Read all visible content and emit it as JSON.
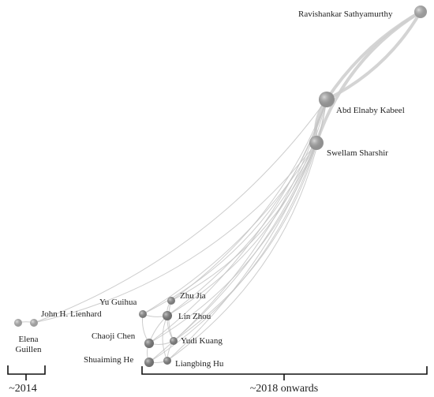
{
  "nodes": [
    {
      "id": "ravi",
      "label": "Ravishankar Sathyamurthy",
      "shade": "#b4b4b4"
    },
    {
      "id": "kabeel",
      "label": "Abd Elnaby Kabeel",
      "shade": "#a8a8a8"
    },
    {
      "id": "sharshir",
      "label": "Swellam Sharshir",
      "shade": "#a8a8a8"
    },
    {
      "id": "lienhard",
      "label": "John H. Lienhard",
      "shade": "#b8b8b8"
    },
    {
      "id": "elena",
      "label_lines": [
        "Elena",
        "Guillen"
      ],
      "shade": "#b8b8b8"
    },
    {
      "id": "yuguihua",
      "label": "Yu Guihua",
      "shade": "#8d8d8d"
    },
    {
      "id": "zhujia",
      "label": "Zhu Jia",
      "shade": "#8d8d8d"
    },
    {
      "id": "linzhou",
      "label": "Lin Zhou",
      "shade": "#7f7f7f"
    },
    {
      "id": "chaoji",
      "label": "Chaoji Chen",
      "shade": "#7f7f7f"
    },
    {
      "id": "yudi",
      "label": "Yudi Kuang",
      "shade": "#858585"
    },
    {
      "id": "shuaiming",
      "label": "Shuaiming He",
      "shade": "#7f7f7f"
    },
    {
      "id": "liangbing",
      "label": "Liangbing Hu",
      "shade": "#858585"
    }
  ],
  "edges": [
    [
      "ravi",
      "kabeel"
    ],
    [
      "ravi",
      "kabeel"
    ],
    [
      "ravi",
      "sharshir"
    ],
    [
      "kabeel",
      "sharshir"
    ],
    [
      "lienhard",
      "elena"
    ],
    [
      "lienhard",
      "kabeel"
    ],
    [
      "lienhard",
      "sharshir"
    ],
    [
      "yuguihua",
      "kabeel"
    ],
    [
      "yuguihua",
      "sharshir"
    ],
    [
      "zhujia",
      "kabeel"
    ],
    [
      "zhujia",
      "sharshir"
    ],
    [
      "linzhou",
      "kabeel"
    ],
    [
      "linzhou",
      "sharshir"
    ],
    [
      "chaoji",
      "kabeel"
    ],
    [
      "chaoji",
      "sharshir"
    ],
    [
      "yudi",
      "kabeel"
    ],
    [
      "yudi",
      "sharshir"
    ],
    [
      "shuaiming",
      "kabeel"
    ],
    [
      "shuaiming",
      "sharshir"
    ],
    [
      "liangbing",
      "kabeel"
    ],
    [
      "liangbing",
      "sharshir"
    ],
    [
      "yuguihua",
      "linzhou"
    ],
    [
      "yuguihua",
      "chaoji"
    ],
    [
      "zhujia",
      "linzhou"
    ],
    [
      "linzhou",
      "chaoji"
    ],
    [
      "linzhou",
      "yudi"
    ],
    [
      "chaoji",
      "yudi"
    ],
    [
      "chaoji",
      "shuaiming"
    ],
    [
      "shuaiming",
      "liangbing"
    ],
    [
      "yudi",
      "liangbing"
    ],
    [
      "zhujia",
      "yudi"
    ],
    [
      "linzhou",
      "liangbing"
    ]
  ],
  "brackets": [
    {
      "id": "era-2014",
      "label": "~2014"
    },
    {
      "id": "era-2018",
      "label": "~2018 onwards"
    }
  ]
}
